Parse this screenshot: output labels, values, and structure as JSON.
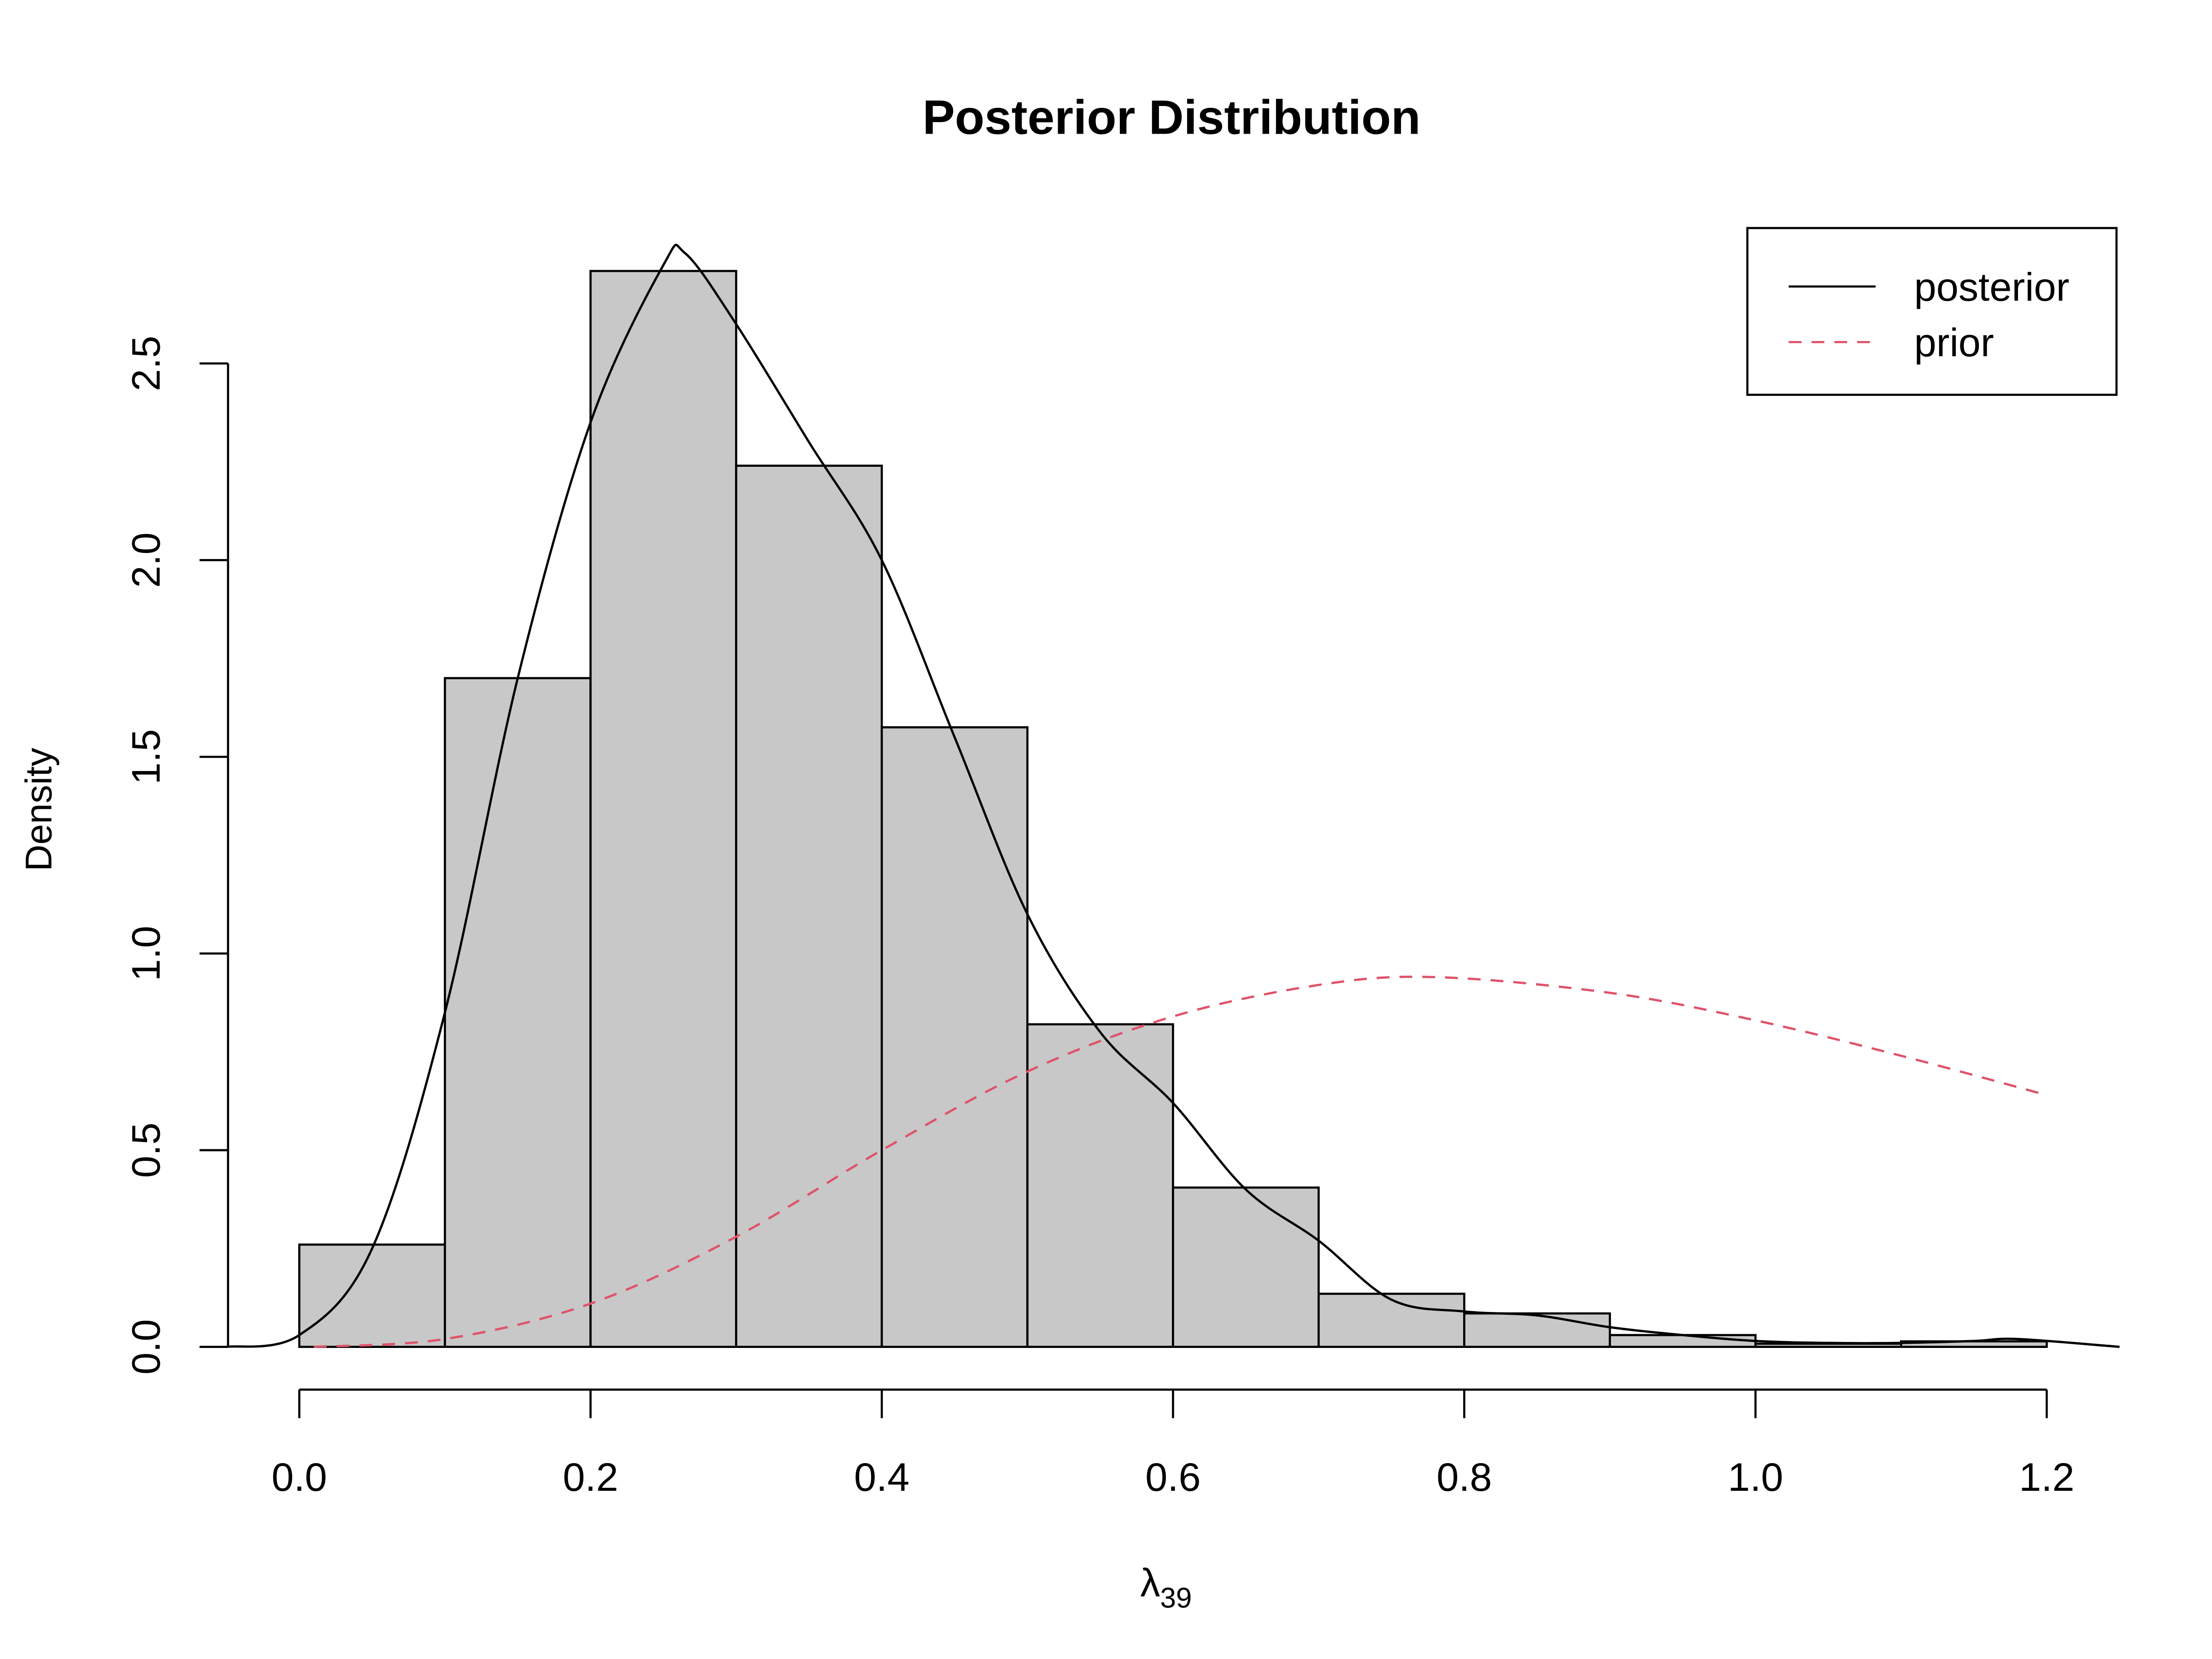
{
  "chart_data": {
    "type": "bar",
    "title": "Posterior Distribution",
    "xlabel": "λ",
    "xlabel_subscript": "39",
    "ylabel": "Density",
    "xlim": [
      -0.05,
      1.25
    ],
    "ylim": [
      0,
      2.8
    ],
    "x_ticks": [
      "0.0",
      "0.2",
      "0.4",
      "0.6",
      "0.8",
      "1.0",
      "1.2"
    ],
    "x_tick_values": [
      0,
      0.2,
      0.4,
      0.6,
      0.8,
      1.0,
      1.2
    ],
    "y_ticks": [
      "0.0",
      "0.5",
      "1.0",
      "1.5",
      "2.0",
      "2.5"
    ],
    "y_tick_values": [
      0,
      0.5,
      1.0,
      1.5,
      2.0,
      2.5
    ],
    "grid": false,
    "histogram": {
      "bin_edges": [
        0,
        0.1,
        0.2,
        0.3,
        0.4,
        0.5,
        0.6,
        0.7,
        0.8,
        0.9,
        1.0,
        1.1,
        1.2
      ],
      "values": [
        0.26,
        1.7,
        2.735,
        2.24,
        1.575,
        0.82,
        0.405,
        0.135,
        0.085,
        0.03,
        0.008,
        0.014
      ],
      "fill": "#c8c8c8"
    },
    "series": [
      {
        "name": "posterior",
        "style": "solid",
        "color": "#000000",
        "x": [
          -0.05,
          0.0,
          0.05,
          0.1,
          0.15,
          0.2,
          0.25,
          0.265,
          0.3,
          0.35,
          0.4,
          0.45,
          0.5,
          0.55,
          0.6,
          0.65,
          0.7,
          0.75,
          0.8,
          0.85,
          0.9,
          0.95,
          1.0,
          1.05,
          1.1,
          1.15,
          1.18,
          1.25
        ],
        "y": [
          0.0,
          0.03,
          0.25,
          0.85,
          1.7,
          2.35,
          2.75,
          2.78,
          2.6,
          2.3,
          2.0,
          1.55,
          1.1,
          0.8,
          0.62,
          0.4,
          0.27,
          0.12,
          0.09,
          0.08,
          0.05,
          0.03,
          0.015,
          0.01,
          0.01,
          0.015,
          0.02,
          0.0
        ]
      },
      {
        "name": "prior",
        "style": "dashed",
        "color": "#DF536B",
        "x": [
          0.01,
          0.1,
          0.2,
          0.3,
          0.4,
          0.5,
          0.6,
          0.7,
          0.78,
          0.9,
          1.0,
          1.1,
          1.2
        ],
        "y": [
          0.0,
          0.02,
          0.11,
          0.28,
          0.5,
          0.7,
          0.84,
          0.92,
          0.94,
          0.9,
          0.83,
          0.74,
          0.64
        ]
      }
    ],
    "legend": {
      "position": "top-right",
      "entries": [
        "posterior",
        "prior"
      ]
    }
  }
}
